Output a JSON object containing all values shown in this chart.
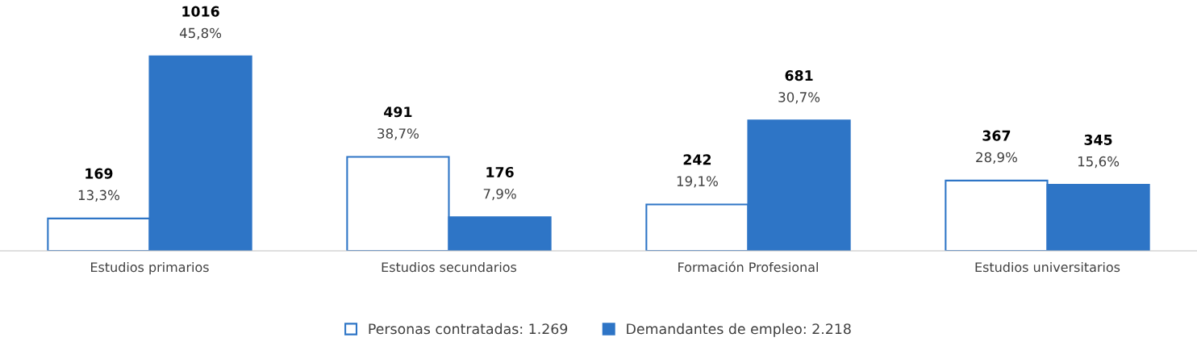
{
  "chart_data": {
    "type": "bar",
    "categories": [
      "Estudios primarios",
      "Estudios secundarios",
      "Formación Profesional",
      "Estudios universitarios"
    ],
    "series": [
      {
        "name": "Personas contratadas: 1.269",
        "color": "#ffffff",
        "values": [
          169,
          491,
          242,
          367
        ],
        "value_labels": [
          "169\n13,3%",
          "491\n38,7%",
          "242\n19,1%",
          "367\n28,9%"
        ]
      },
      {
        "name": "Demandantes de empleo: 2.218",
        "color": "#2e75c6",
        "values": [
          1016,
          176,
          681,
          345
        ],
        "value_labels": [
          "1016\n45,8%",
          "176\n7,9%",
          "681\n30,7%",
          "345\n15,6%"
        ]
      }
    ],
    "legend": "bottom",
    "grid": false
  }
}
